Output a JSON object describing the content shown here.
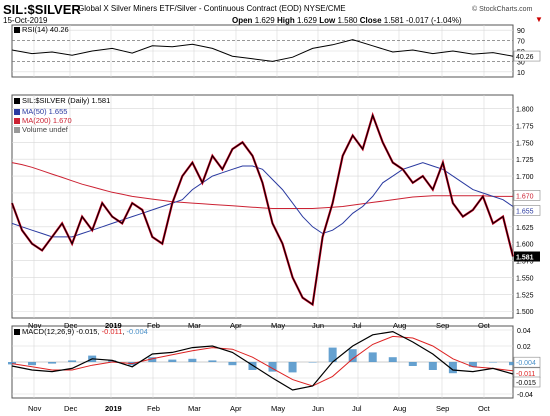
{
  "header": {
    "ticker": "SIL:$SILVER",
    "description": "Global X Silver Miners ETF/Silver - Continuous Contract (EOD) NYSE/CME",
    "watermark": "© StockCharts.com",
    "date": "15-Oct-2019",
    "open_label": "Open",
    "open": "1.629",
    "high_label": "High",
    "high": "1.629",
    "low_label": "Low",
    "low": "1.580",
    "close_label": "Close",
    "close": "1.581",
    "change": "-0.017 (-1.04%)"
  },
  "rsi_panel": {
    "label": "RSI(14) 40.26",
    "ticks": [
      "90",
      "70",
      "50",
      "30",
      "10"
    ],
    "current_value_badge": "40.26"
  },
  "price_panel": {
    "legend_ticker": "SIL:$SILVER (Daily) 1.581",
    "legend_ma50": "MA(50) 1.655",
    "legend_ma200": "MA(200) 1.670",
    "legend_volume": "Volume undef",
    "badges": [
      "1.670",
      "1.655",
      "1.581"
    ]
  },
  "macd_panel": {
    "label_prefix": "MACD(12,26,9)",
    "macd_value": "-0.015",
    "signal_value": "-0.011",
    "hist_value": "-0.004",
    "ticks": [
      "0.04",
      "0.02",
      "0.00",
      "-0.02",
      "-0.04"
    ],
    "badges": [
      "-0.004",
      "-0.011",
      "-0.015"
    ]
  },
  "x_axis": {
    "labels": [
      "Nov",
      "Dec",
      "2019",
      "Feb",
      "Mar",
      "Apr",
      "May",
      "Jun",
      "Jul",
      "Aug",
      "Sep",
      "Oct"
    ]
  },
  "colors": {
    "price": "#000000",
    "price_overlay": "#cc0022",
    "ma50": "#2a3aa0",
    "ma200": "#cc2233",
    "macd_line": "#000000",
    "signal_line": "#dd2222",
    "histogram": "#4a90c8",
    "grid": "#d8d8d8"
  },
  "chart_data": [
    {
      "type": "line",
      "title": "RSI(14)",
      "ylim": [
        0,
        100
      ],
      "reference_lines": [
        30,
        70
      ],
      "x": [
        0,
        10,
        20,
        30,
        40,
        50,
        60,
        70,
        80,
        90,
        100,
        110,
        120,
        130,
        140,
        150,
        160,
        170,
        180,
        190,
        200,
        210,
        220,
        230,
        240,
        250
      ],
      "series": [
        {
          "name": "RSI(14)",
          "values": [
            52,
            45,
            48,
            42,
            50,
            55,
            46,
            60,
            58,
            63,
            55,
            40,
            35,
            30,
            38,
            55,
            62,
            72,
            60,
            48,
            52,
            45,
            50,
            44,
            47,
            40
          ]
        }
      ]
    },
    {
      "type": "line",
      "title": "SIL:$SILVER (Daily)",
      "ylim": [
        1.49,
        1.82
      ],
      "yticks": [
        1.5,
        1.525,
        1.55,
        1.575,
        1.6,
        1.625,
        1.65,
        1.675,
        1.7,
        1.725,
        1.75,
        1.775,
        1.8
      ],
      "x": [
        0,
        5,
        10,
        15,
        20,
        25,
        30,
        35,
        40,
        45,
        50,
        55,
        60,
        65,
        70,
        75,
        80,
        85,
        90,
        95,
        100,
        105,
        110,
        115,
        120,
        125,
        130,
        135,
        140,
        145,
        150,
        155,
        160,
        165,
        170,
        175,
        180,
        185,
        190,
        195,
        200,
        205,
        210,
        215,
        220,
        225,
        230,
        235,
        240,
        245,
        250
      ],
      "series": [
        {
          "name": "SIL:$SILVER",
          "values": [
            1.66,
            1.62,
            1.6,
            1.59,
            1.61,
            1.63,
            1.6,
            1.64,
            1.62,
            1.66,
            1.64,
            1.63,
            1.66,
            1.65,
            1.61,
            1.6,
            1.66,
            1.7,
            1.72,
            1.69,
            1.73,
            1.71,
            1.74,
            1.75,
            1.73,
            1.69,
            1.63,
            1.6,
            1.55,
            1.52,
            1.51,
            1.61,
            1.66,
            1.73,
            1.76,
            1.74,
            1.79,
            1.75,
            1.72,
            1.71,
            1.69,
            1.7,
            1.68,
            1.72,
            1.66,
            1.64,
            1.65,
            1.67,
            1.63,
            1.64,
            1.581
          ]
        },
        {
          "name": "MA(50)",
          "values": [
            1.63,
            1.625,
            1.62,
            1.615,
            1.61,
            1.61,
            1.61,
            1.615,
            1.62,
            1.625,
            1.63,
            1.635,
            1.64,
            1.645,
            1.65,
            1.655,
            1.66,
            1.665,
            1.68,
            1.69,
            1.7,
            1.705,
            1.71,
            1.715,
            1.715,
            1.71,
            1.695,
            1.68,
            1.66,
            1.64,
            1.625,
            1.615,
            1.62,
            1.63,
            1.645,
            1.655,
            1.67,
            1.69,
            1.7,
            1.71,
            1.715,
            1.72,
            1.715,
            1.71,
            1.7,
            1.69,
            1.68,
            1.675,
            1.67,
            1.665,
            1.655
          ]
        },
        {
          "name": "MA(200)",
          "values": [
            1.72,
            1.717,
            1.713,
            1.708,
            1.703,
            1.698,
            1.693,
            1.688,
            1.684,
            1.68,
            1.676,
            1.673,
            1.67,
            1.668,
            1.666,
            1.664,
            1.662,
            1.661,
            1.66,
            1.659,
            1.658,
            1.657,
            1.656,
            1.655,
            1.654,
            1.653,
            1.652,
            1.652,
            1.652,
            1.652,
            1.652,
            1.653,
            1.654,
            1.655,
            1.657,
            1.659,
            1.661,
            1.663,
            1.665,
            1.667,
            1.669,
            1.67,
            1.671,
            1.671,
            1.671,
            1.671,
            1.671,
            1.671,
            1.67,
            1.67,
            1.67
          ]
        }
      ]
    },
    {
      "type": "line",
      "title": "MACD(12,26,9)",
      "ylim": [
        -0.045,
        0.045
      ],
      "x": [
        0,
        10,
        20,
        30,
        40,
        50,
        60,
        70,
        80,
        90,
        100,
        110,
        120,
        130,
        140,
        150,
        160,
        170,
        180,
        190,
        200,
        210,
        220,
        230,
        240,
        250
      ],
      "series": [
        {
          "name": "MACD",
          "values": [
            -0.005,
            -0.01,
            -0.012,
            -0.008,
            0.004,
            0.002,
            -0.006,
            0.01,
            0.012,
            0.018,
            0.02,
            0.012,
            -0.004,
            -0.02,
            -0.035,
            -0.03,
            0.0,
            0.02,
            0.034,
            0.038,
            0.025,
            0.01,
            -0.01,
            -0.012,
            -0.008,
            -0.015
          ]
        },
        {
          "name": "Signal",
          "values": [
            -0.002,
            -0.006,
            -0.01,
            -0.01,
            -0.004,
            0.0,
            -0.002,
            0.004,
            0.009,
            0.014,
            0.018,
            0.016,
            0.006,
            -0.008,
            -0.022,
            -0.03,
            -0.018,
            0.004,
            0.022,
            0.032,
            0.03,
            0.02,
            0.004,
            -0.006,
            -0.008,
            -0.011
          ]
        },
        {
          "name": "Histogram",
          "values": [
            -0.003,
            -0.004,
            -0.002,
            0.002,
            0.008,
            0.002,
            -0.004,
            0.006,
            0.003,
            0.004,
            0.002,
            -0.004,
            -0.01,
            -0.012,
            -0.013,
            0.0,
            0.018,
            0.016,
            0.012,
            0.006,
            -0.005,
            -0.01,
            -0.014,
            -0.006,
            0.0,
            -0.004
          ]
        }
      ]
    }
  ]
}
